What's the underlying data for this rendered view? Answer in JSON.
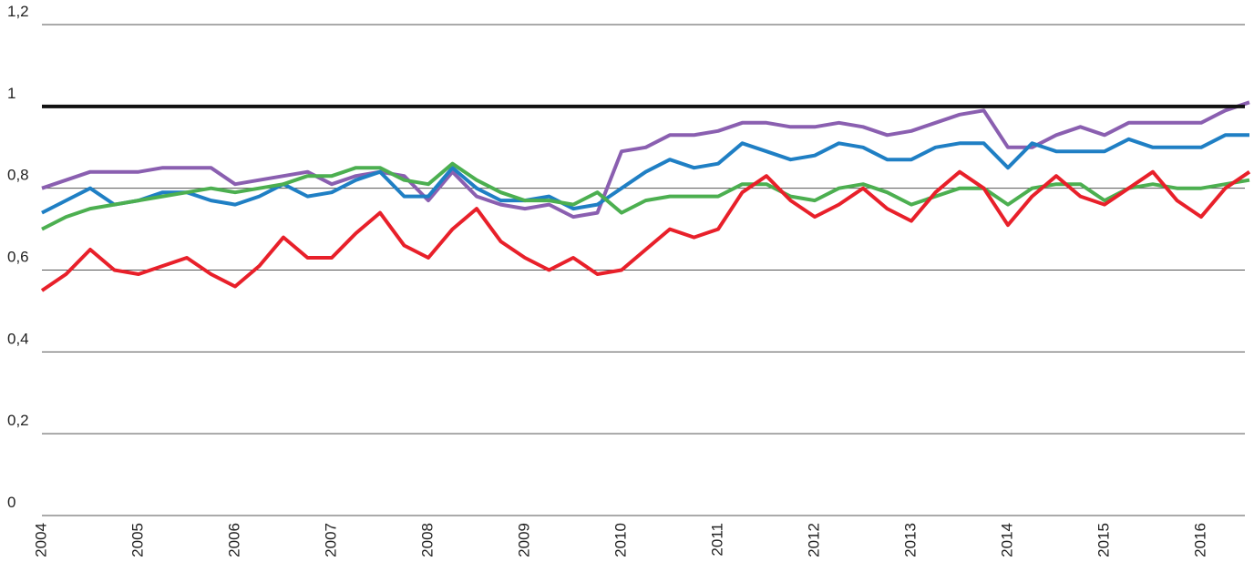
{
  "chart_data": {
    "type": "line",
    "x": [
      2004,
      2004.25,
      2004.5,
      2004.75,
      2005,
      2005.25,
      2005.5,
      2005.75,
      2006,
      2006.25,
      2006.5,
      2006.75,
      2007,
      2007.25,
      2007.5,
      2007.75,
      2008,
      2008.25,
      2008.5,
      2008.75,
      2009,
      2009.25,
      2009.5,
      2009.75,
      2010,
      2010.25,
      2010.5,
      2010.75,
      2011,
      2011.25,
      2011.5,
      2011.75,
      2012,
      2012.25,
      2012.5,
      2012.75,
      2013,
      2013.25,
      2013.5,
      2013.75,
      2014,
      2014.25,
      2014.5,
      2014.75,
      2015,
      2015.25,
      2015.5,
      2015.75,
      2016,
      2016.25,
      2016.5
    ],
    "series": [
      {
        "color": "#8a5fb0",
        "values": [
          0.8,
          0.82,
          0.84,
          0.84,
          0.84,
          0.85,
          0.85,
          0.85,
          0.81,
          0.82,
          0.83,
          0.84,
          0.81,
          0.83,
          0.84,
          0.83,
          0.77,
          0.84,
          0.78,
          0.76,
          0.75,
          0.76,
          0.73,
          0.74,
          0.89,
          0.9,
          0.93,
          0.93,
          0.94,
          0.96,
          0.96,
          0.95,
          0.95,
          0.96,
          0.95,
          0.93,
          0.94,
          0.96,
          0.98,
          0.99,
          0.9,
          0.9,
          0.93,
          0.95,
          0.93,
          0.96,
          0.96,
          0.96,
          0.96,
          0.99,
          1.01
        ]
      },
      {
        "color": "#1f7fc4",
        "values": [
          0.74,
          0.77,
          0.8,
          0.76,
          0.77,
          0.79,
          0.79,
          0.77,
          0.76,
          0.78,
          0.81,
          0.78,
          0.79,
          0.82,
          0.84,
          0.78,
          0.78,
          0.85,
          0.8,
          0.77,
          0.77,
          0.78,
          0.75,
          0.76,
          0.8,
          0.84,
          0.87,
          0.85,
          0.86,
          0.91,
          0.89,
          0.87,
          0.88,
          0.91,
          0.9,
          0.87,
          0.87,
          0.9,
          0.91,
          0.91,
          0.85,
          0.91,
          0.89,
          0.89,
          0.89,
          0.92,
          0.9,
          0.9,
          0.9,
          0.93,
          0.93
        ]
      },
      {
        "color": "#4caf50",
        "values": [
          0.7,
          0.73,
          0.75,
          0.76,
          0.77,
          0.78,
          0.79,
          0.8,
          0.79,
          0.8,
          0.81,
          0.83,
          0.83,
          0.85,
          0.85,
          0.82,
          0.81,
          0.86,
          0.82,
          0.79,
          0.77,
          0.77,
          0.76,
          0.79,
          0.74,
          0.77,
          0.78,
          0.78,
          0.78,
          0.81,
          0.81,
          0.78,
          0.77,
          0.8,
          0.81,
          0.79,
          0.76,
          0.78,
          0.8,
          0.8,
          0.76,
          0.8,
          0.81,
          0.81,
          0.77,
          0.8,
          0.81,
          0.8,
          0.8,
          0.81,
          0.82
        ]
      },
      {
        "color": "#e8202a",
        "values": [
          0.55,
          0.59,
          0.65,
          0.6,
          0.59,
          0.61,
          0.63,
          0.59,
          0.56,
          0.61,
          0.68,
          0.63,
          0.63,
          0.69,
          0.74,
          0.66,
          0.63,
          0.7,
          0.75,
          0.67,
          0.63,
          0.6,
          0.63,
          0.59,
          0.6,
          0.65,
          0.7,
          0.68,
          0.7,
          0.79,
          0.83,
          0.77,
          0.73,
          0.76,
          0.8,
          0.75,
          0.72,
          0.79,
          0.84,
          0.8,
          0.71,
          0.78,
          0.83,
          0.78,
          0.76,
          0.8,
          0.84,
          0.77,
          0.73,
          0.8,
          0.84
        ]
      }
    ],
    "xlim": [
      2004,
      2016.5
    ],
    "xticks": [
      2004,
      2005,
      2006,
      2007,
      2008,
      2009,
      2010,
      2011,
      2012,
      2013,
      2014,
      2015,
      2016
    ],
    "ylim": [
      0,
      1.2
    ],
    "yticks": [
      0,
      {
        "value": 0.2,
        "label": "0,2"
      },
      {
        "value": 0.4,
        "label": "0,4"
      },
      {
        "value": 0.6,
        "label": "0,6"
      },
      {
        "value": 0.8,
        "label": "0,8"
      },
      1,
      {
        "value": 1.2,
        "label": "1,2"
      }
    ],
    "hline": 1,
    "hline_color": "#111111",
    "grid": true
  }
}
